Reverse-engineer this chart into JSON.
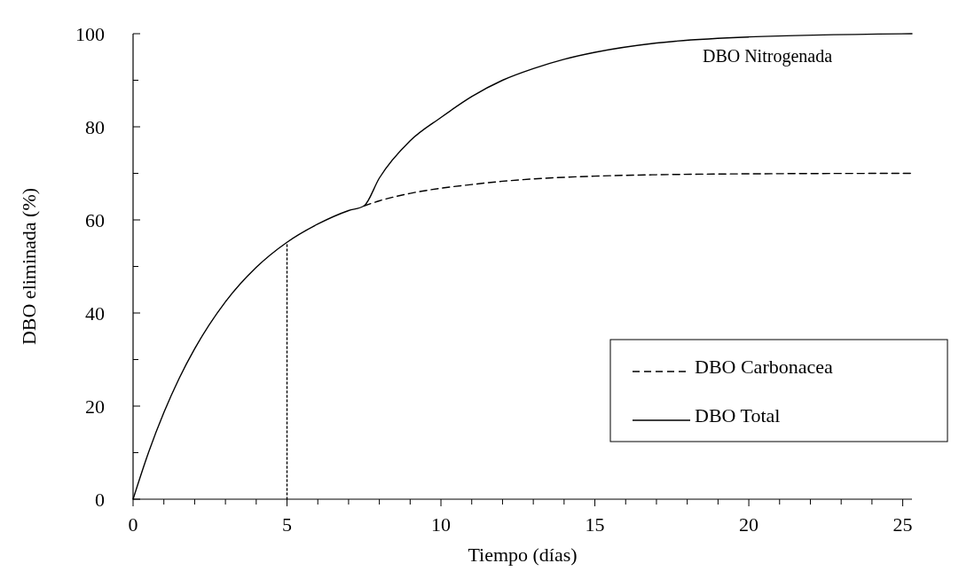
{
  "chart_data": {
    "type": "line",
    "xlabel": "Tiempo (días)",
    "ylabel": "DBO eliminada (%)",
    "xlim": [
      0,
      25.3
    ],
    "ylim": [
      0,
      100
    ],
    "xticks": [
      0,
      {
        "value": 1,
        "label": null
      },
      {
        "value": 2,
        "label": null
      },
      {
        "value": 3,
        "label": null
      },
      {
        "value": 4,
        "label": null
      },
      5,
      {
        "value": 6,
        "label": null
      },
      {
        "value": 7,
        "label": null
      },
      {
        "value": 8,
        "label": null
      },
      {
        "value": 9,
        "label": null
      },
      10,
      {
        "value": 11,
        "label": null
      },
      {
        "value": 12,
        "label": null
      },
      {
        "value": 13,
        "label": null
      },
      {
        "value": 14,
        "label": null
      },
      15,
      {
        "value": 16,
        "label": null
      },
      {
        "value": 17,
        "label": null
      },
      {
        "value": 18,
        "label": null
      },
      {
        "value": 19,
        "label": null
      },
      20,
      {
        "value": 21,
        "label": null
      },
      {
        "value": 22,
        "label": null
      },
      {
        "value": 23,
        "label": null
      },
      {
        "value": 24,
        "label": null
      },
      25
    ],
    "yticks": [
      0,
      {
        "value": 10,
        "label": null
      },
      20,
      {
        "value": 30,
        "label": null
      },
      40,
      {
        "value": 50,
        "label": null
      },
      60,
      {
        "value": 70,
        "label": null
      },
      80,
      {
        "value": 90,
        "label": null
      },
      100
    ],
    "grid": false,
    "legend": "bottom right",
    "marker": "none",
    "series": [
      {
        "name": "DBO Carbonacea",
        "color": "#000000",
        "line_style": "dashed",
        "x": [
          7.5,
          8,
          9,
          10,
          11,
          12,
          13,
          15,
          17,
          20,
          25.3
        ],
        "values": [
          63,
          64.1,
          65.7,
          66.8,
          67.6,
          68.3,
          68.8,
          69.4,
          69.7,
          69.9,
          70
        ]
      },
      {
        "name": "DBO Total",
        "color": "#000000",
        "line_style": "solid",
        "x": [
          0,
          0.5,
          1,
          1.5,
          2,
          3,
          4,
          5,
          6,
          7,
          7.5,
          8,
          9,
          10,
          11,
          12,
          13,
          14,
          15,
          17,
          20,
          25.3
        ],
        "values": [
          0,
          10,
          18.6,
          26,
          32.3,
          42.4,
          49.8,
          55.2,
          59.1,
          62,
          63,
          69,
          77,
          82,
          86.5,
          90,
          92.5,
          94.5,
          96,
          98,
          99.3,
          100
        ]
      },
      {
        "color": "#000000",
        "line_style": "dotted",
        "x": [
          5,
          5
        ],
        "values": [
          0,
          55.2
        ]
      }
    ],
    "annotations": [
      "DBO Nitrogenada"
    ]
  }
}
